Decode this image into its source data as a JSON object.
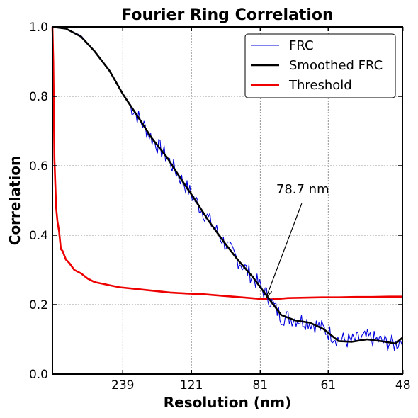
{
  "chart_data": {
    "type": "line",
    "title": "Fourier Ring Correlation",
    "xlabel": "Resolution (nm)",
    "ylabel": "Correlation",
    "x_quantity": "spatial frequency (1/nm)",
    "xlim": [
      0,
      0.0208
    ],
    "ylim": [
      0,
      1.0
    ],
    "grid": true,
    "grid_style": "dotted",
    "legend_position": "top-right",
    "xticks": [
      {
        "label": "239",
        "value": 0.00418
      },
      {
        "label": "121",
        "value": 0.00826
      },
      {
        "label": "81",
        "value": 0.01235
      },
      {
        "label": "61",
        "value": 0.01639
      },
      {
        "label": "48",
        "value": 0.02083
      }
    ],
    "yticks": [
      "0.0",
      "0.2",
      "0.4",
      "0.6",
      "0.8",
      "1.0"
    ],
    "yticks_values": [
      0.0,
      0.2,
      0.4,
      0.6,
      0.8,
      1.0
    ],
    "series": [
      {
        "name": "FRC",
        "color": "#0000dd",
        "style": "thin",
        "x": [
          0.0,
          0.0008,
          0.0017,
          0.0025,
          0.0034,
          0.0042,
          0.0051,
          0.0059,
          0.0068,
          0.0076,
          0.0085,
          0.0093,
          0.0102,
          0.011,
          0.0119,
          0.0127,
          0.0136,
          0.0144,
          0.0153,
          0.0161,
          0.017,
          0.0178,
          0.0187,
          0.0195,
          0.0204,
          0.0208
        ],
        "y": [
          1.0,
          0.995,
          0.975,
          0.93,
          0.875,
          0.805,
          0.74,
          0.68,
          0.625,
          0.565,
          0.5,
          0.445,
          0.38,
          0.33,
          0.28,
          0.23,
          0.165,
          0.16,
          0.15,
          0.13,
          0.1,
          0.095,
          0.105,
          0.095,
          0.085,
          0.105
        ],
        "noise_amplitude": 0.025
      },
      {
        "name": "Smoothed FRC",
        "color": "#000000",
        "style": "thick",
        "x": [
          0.0,
          0.0008,
          0.0017,
          0.0025,
          0.0034,
          0.0042,
          0.0051,
          0.0059,
          0.0068,
          0.0076,
          0.0085,
          0.0093,
          0.0102,
          0.011,
          0.0119,
          0.0127,
          0.0136,
          0.0144,
          0.0153,
          0.0161,
          0.017,
          0.0178,
          0.0187,
          0.0195,
          0.0204,
          0.0208
        ],
        "y": [
          1.0,
          0.995,
          0.972,
          0.93,
          0.873,
          0.805,
          0.74,
          0.68,
          0.625,
          0.565,
          0.5,
          0.44,
          0.38,
          0.33,
          0.28,
          0.228,
          0.17,
          0.155,
          0.148,
          0.13,
          0.095,
          0.093,
          0.1,
          0.095,
          0.088,
          0.105
        ]
      },
      {
        "name": "Threshold",
        "color": "#ee0000",
        "style": "thick",
        "x": [
          0.0,
          5e-05,
          0.00012,
          0.00022,
          0.0003,
          0.0004,
          0.0005,
          0.0006,
          0.0008,
          0.001,
          0.0013,
          0.0017,
          0.0021,
          0.0025,
          0.003,
          0.0035,
          0.004,
          0.005,
          0.006,
          0.007,
          0.008,
          0.009,
          0.01,
          0.011,
          0.012,
          0.0125,
          0.013,
          0.0135,
          0.014,
          0.015,
          0.016,
          0.017,
          0.018,
          0.019,
          0.02,
          0.0208
        ],
        "y": [
          1.0,
          0.9,
          0.62,
          0.48,
          0.44,
          0.41,
          0.36,
          0.355,
          0.33,
          0.32,
          0.3,
          0.29,
          0.275,
          0.265,
          0.26,
          0.255,
          0.25,
          0.245,
          0.24,
          0.235,
          0.232,
          0.23,
          0.226,
          0.222,
          0.218,
          0.216,
          0.215,
          0.217,
          0.219,
          0.22,
          0.221,
          0.221,
          0.222,
          0.222,
          0.223,
          0.223
        ]
      }
    ],
    "annotations": [
      {
        "text": "78.7 nm",
        "arrow_to_x": 0.0127,
        "arrow_to_y": 0.22,
        "text_x": 0.0133,
        "text_y": 0.52
      }
    ]
  }
}
